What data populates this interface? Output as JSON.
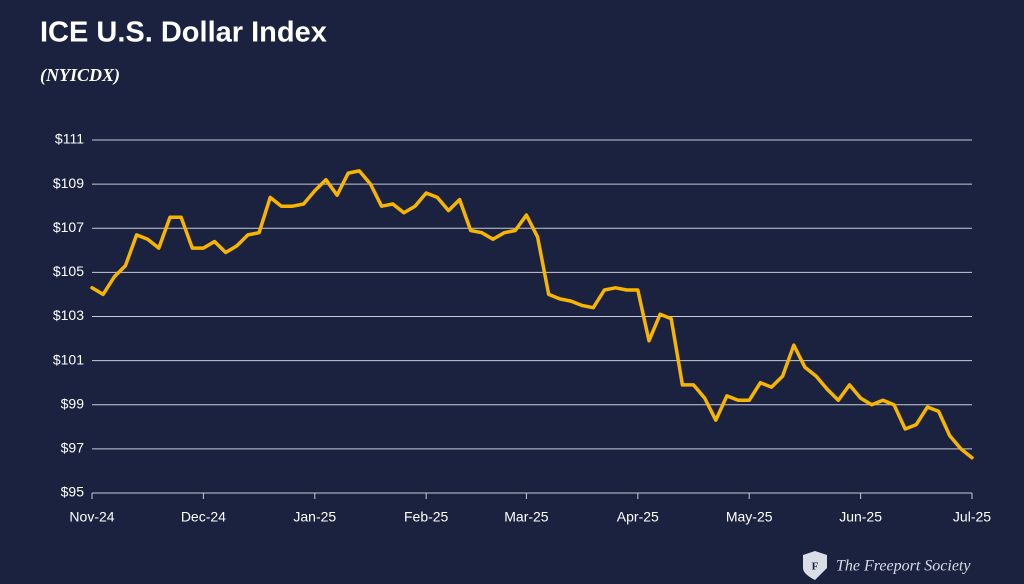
{
  "chart_data": {
    "type": "line",
    "title": "ICE U.S. Dollar Index",
    "subtitle": "(NYICDX)",
    "footer": "The Freeport Society",
    "categories": [
      "Nov-24",
      null,
      null,
      null,
      null,
      null,
      null,
      null,
      null,
      null,
      "Dec-24",
      null,
      null,
      null,
      null,
      null,
      null,
      null,
      null,
      null,
      "Jan-25",
      null,
      null,
      null,
      null,
      null,
      null,
      null,
      null,
      null,
      "Feb-25",
      null,
      null,
      null,
      null,
      null,
      null,
      null,
      null,
      "Mar-25",
      null,
      null,
      null,
      null,
      null,
      null,
      null,
      null,
      null,
      "Apr-25",
      null,
      null,
      null,
      null,
      null,
      null,
      null,
      null,
      null,
      "May-25",
      null,
      null,
      null,
      null,
      null,
      null,
      null,
      null,
      null,
      "Jun-25",
      null,
      null,
      null,
      null,
      null,
      null,
      null,
      null,
      null,
      "Jul-25"
    ],
    "series": [
      {
        "color": "#f7b500",
        "values": [
          104.3,
          104.0,
          104.8,
          105.3,
          106.7,
          106.5,
          106.1,
          107.5,
          107.5,
          106.1,
          106.1,
          106.4,
          105.9,
          106.2,
          106.7,
          106.8,
          108.4,
          108.0,
          108.0,
          108.1,
          108.7,
          109.2,
          108.5,
          109.5,
          109.6,
          109.0,
          108.0,
          108.1,
          107.7,
          108.0,
          108.6,
          108.4,
          107.8,
          108.3,
          106.9,
          106.8,
          106.5,
          106.8,
          106.9,
          107.6,
          106.6,
          104.0,
          103.8,
          103.7,
          103.5,
          103.4,
          104.2,
          104.3,
          104.2,
          104.2,
          101.9,
          103.1,
          102.9,
          99.9,
          99.9,
          99.3,
          98.3,
          99.4,
          99.2,
          99.2,
          100.0,
          99.8,
          100.3,
          101.7,
          100.7,
          100.3,
          99.7,
          99.2,
          99.9,
          99.3,
          99.0,
          99.2,
          99.0,
          97.9,
          98.1,
          98.9,
          98.7,
          97.6,
          97.0,
          96.6
        ]
      }
    ],
    "ylim": [
      95,
      111
    ],
    "yticks": [
      {
        "value": 95,
        "label": "$95"
      },
      {
        "value": 97,
        "label": "$97"
      },
      {
        "value": 99,
        "label": "$99"
      },
      {
        "value": 101,
        "label": "$101"
      },
      {
        "value": 103,
        "label": "$103"
      },
      {
        "value": 105,
        "label": "$105"
      },
      {
        "value": 107,
        "label": "$107"
      },
      {
        "value": 109,
        "label": "$109"
      },
      {
        "value": 111,
        "label": "$111"
      }
    ],
    "grid": true
  }
}
